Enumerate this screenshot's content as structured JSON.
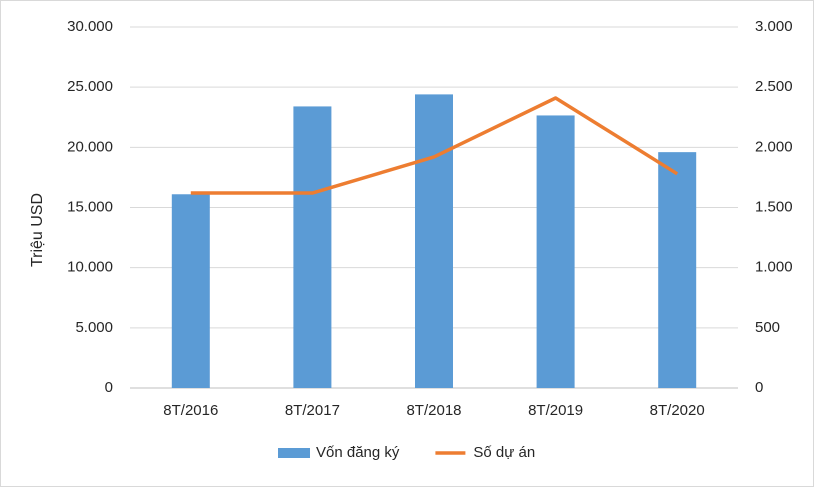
{
  "chart_data": {
    "type": "bar",
    "y_label": "Triệu USD",
    "categories": [
      "8T/2016",
      "8T/2017",
      "8T/2018",
      "8T/2019",
      "8T/2020"
    ],
    "series": [
      {
        "name": "Vốn đăng ký",
        "color": "#5b9bd5",
        "type": "bar",
        "values": [
          16100,
          23400,
          24400,
          22650,
          19600
        ]
      },
      {
        "name": "Số dự án",
        "color": "#ed7d31",
        "type": "line",
        "axis": "y2",
        "values": [
          1620,
          1620,
          1920,
          2410,
          1780
        ]
      }
    ],
    "ylim": [
      0,
      30000
    ],
    "yticks": [
      0,
      {
        "value": 5000,
        "label": "5.000"
      },
      {
        "value": 10000,
        "label": "10.000"
      },
      {
        "value": 15000,
        "label": "15.000"
      },
      {
        "value": 20000,
        "label": "20.000"
      },
      {
        "value": 25000,
        "label": "25.000"
      },
      {
        "value": 30000,
        "label": "30.000"
      }
    ],
    "y2lim": [
      0,
      3000
    ],
    "y2ticks": [
      0,
      500,
      {
        "value": 1000,
        "label": "1.000"
      },
      {
        "value": 1500,
        "label": "1.500"
      },
      {
        "value": 2000,
        "label": "2.000"
      },
      {
        "value": 2500,
        "label": "2.500"
      },
      {
        "value": 3000,
        "label": "3.000"
      }
    ],
    "grid": true,
    "legend": "bottom"
  }
}
